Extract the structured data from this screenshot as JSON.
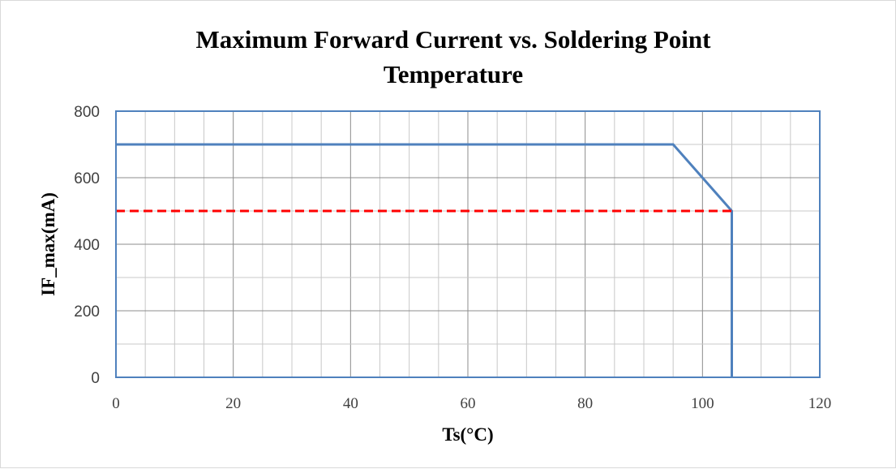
{
  "chart_data": {
    "type": "line",
    "title_lines": [
      "Maximum Forward Current vs. Soldering Point",
      "Temperature"
    ],
    "xlabel": "Ts(°C)",
    "ylabel": "IF_max(mA)",
    "xlim": [
      0,
      120
    ],
    "ylim": [
      0,
      800
    ],
    "x_ticks": [
      0,
      20,
      40,
      60,
      80,
      100,
      120
    ],
    "y_ticks": [
      0,
      200,
      400,
      600,
      800
    ],
    "x_minor_step": 5,
    "y_minor_step": 100,
    "grid": true,
    "legend": "none",
    "series": [
      {
        "style": "solid",
        "color": "#4f81bd",
        "x": [
          0,
          95,
          105,
          105
        ],
        "y": [
          700,
          700,
          500,
          0
        ]
      },
      {
        "style": "dashed",
        "color": "#ff0000",
        "x": [
          0,
          105
        ],
        "y": [
          500,
          500
        ]
      }
    ]
  }
}
